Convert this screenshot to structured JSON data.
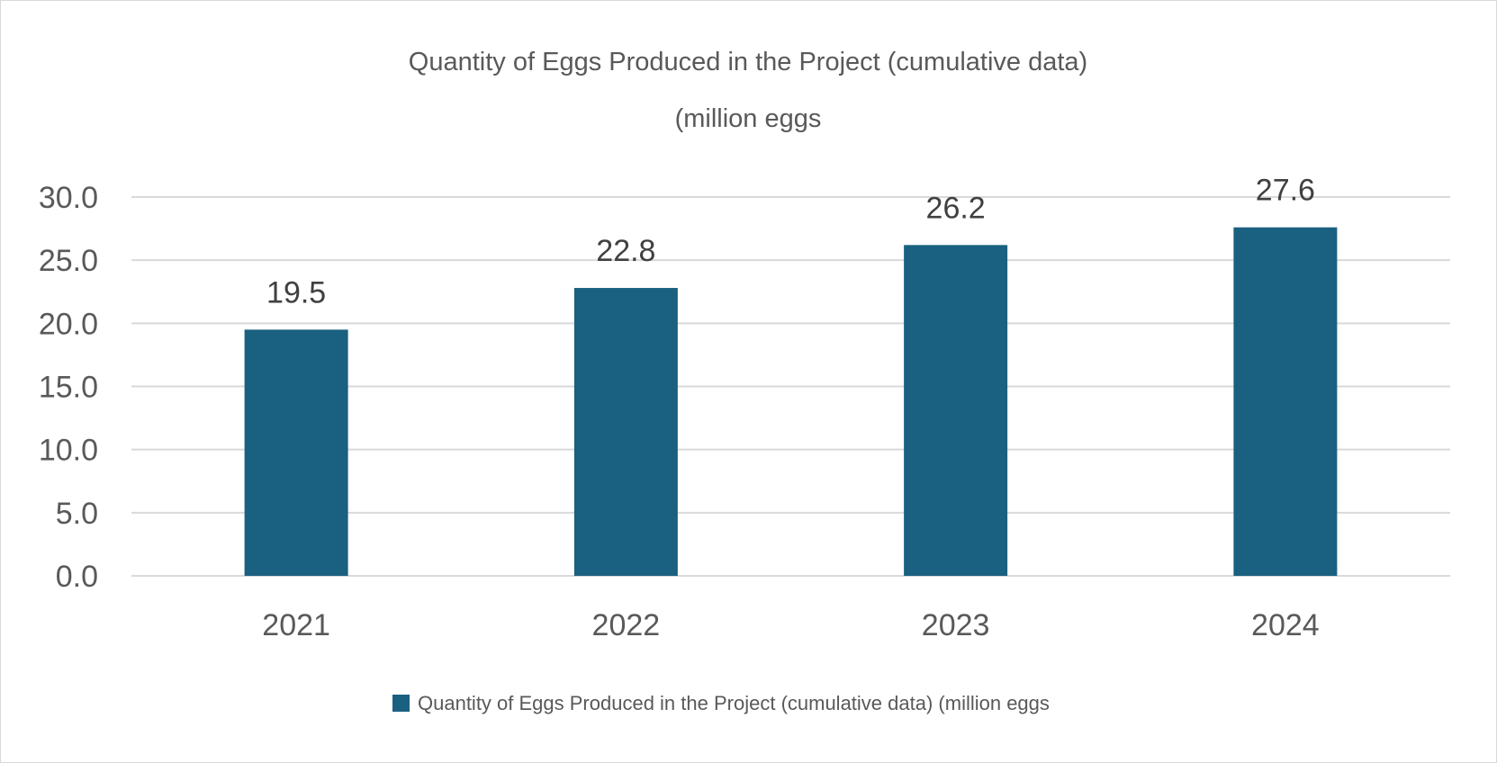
{
  "chart_data": {
    "type": "bar",
    "title": "Quantity of Eggs Produced in the Project (cumulative data)",
    "subtitle": "(million eggs",
    "categories": [
      "2021",
      "2022",
      "2023",
      "2024"
    ],
    "series": [
      {
        "name": "Quantity of Eggs Produced in the Project (cumulative data) (million eggs",
        "values": [
          19.5,
          22.8,
          26.2,
          27.6
        ],
        "color": "#1a6080"
      }
    ],
    "data_labels": [
      "19.5",
      "22.8",
      "26.2",
      "27.6"
    ],
    "yticks": [
      "0.0",
      "5.0",
      "10.0",
      "15.0",
      "20.0",
      "25.0",
      "30.0"
    ],
    "ylim": [
      0,
      30
    ],
    "ytick_step": 5,
    "xlabel": "",
    "ylabel": "",
    "grid": true,
    "legend_position": "bottom",
    "gridline_color": "#d9d9d9",
    "text_color": "#595959"
  }
}
